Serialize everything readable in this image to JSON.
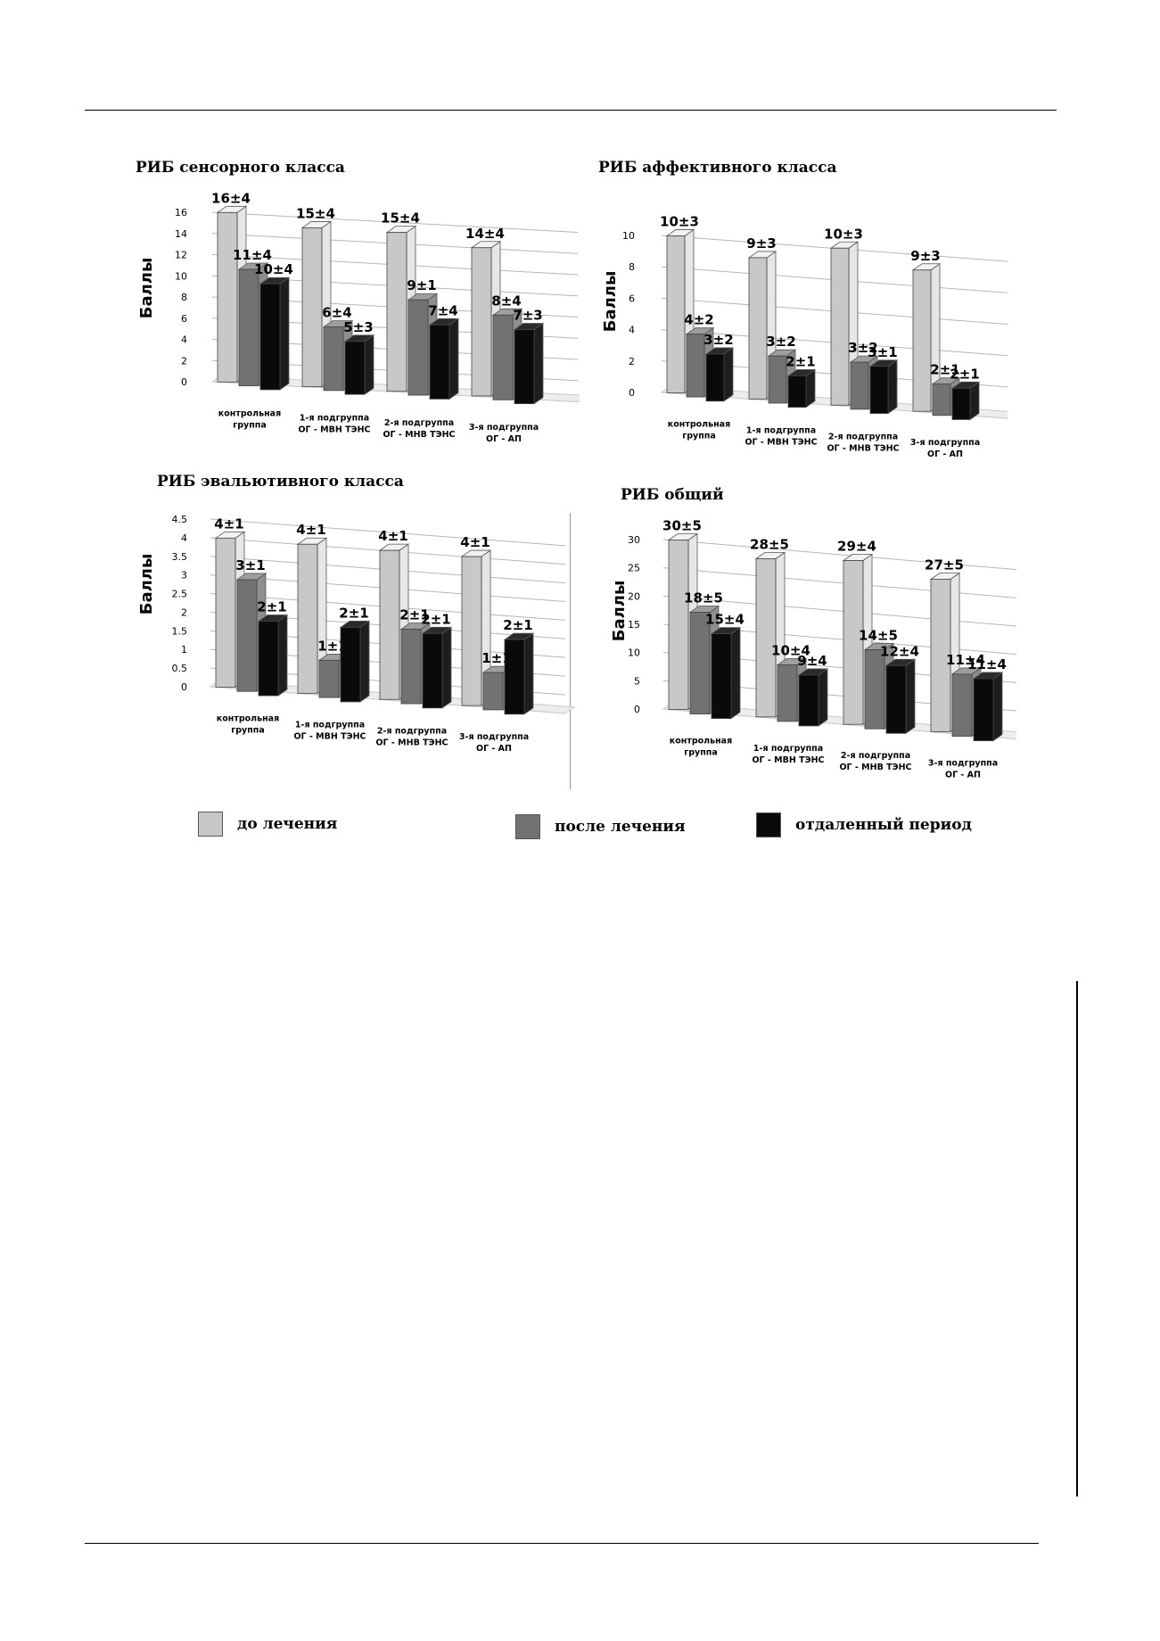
{
  "legend": [
    {
      "label": "до лечения",
      "color": "#c8c8c8"
    },
    {
      "label": "после лечения",
      "color": "#727272"
    },
    {
      "label": "отдаленный период",
      "color": "#0a0a0a"
    }
  ],
  "chart_data": [
    {
      "type": "bar",
      "title": "РИБ сенсорного класса",
      "ylabel": "Баллы",
      "ylim": [
        0,
        16
      ],
      "yticks": [
        "0",
        "2",
        "4",
        "6",
        "8",
        "10",
        "12",
        "14",
        "16"
      ],
      "categories": [
        [
          "контрольная",
          "группа"
        ],
        [
          "1-я подгруппа",
          "ОГ - МВН ТЭНС"
        ],
        [
          "2-я подгруппа",
          "ОГ - МНВ ТЭНС"
        ],
        [
          "3-я подгруппа",
          "ОГ -  АП"
        ]
      ],
      "series": [
        {
          "name": "до лечения",
          "values": [
            16,
            15,
            15,
            14
          ],
          "labels": [
            "16±4",
            "15±4",
            "15±4",
            "14±4"
          ]
        },
        {
          "name": "после лечения",
          "values": [
            11,
            6,
            9,
            8
          ],
          "labels": [
            "11±4",
            "6±4",
            "9±1",
            "8±4"
          ]
        },
        {
          "name": "отдаленный период",
          "values": [
            10,
            5,
            7,
            7
          ],
          "labels": [
            "10±4",
            "5±3",
            "7±4",
            "7±3"
          ]
        }
      ]
    },
    {
      "type": "bar",
      "title": "РИБ аффективного класса",
      "ylabel": "Баллы",
      "ylim": [
        0,
        10
      ],
      "yticks": [
        "0",
        "2",
        "4",
        "6",
        "8",
        "10"
      ],
      "categories": [
        [
          "контрольная",
          "группа"
        ],
        [
          "1-я подгруппа",
          "ОГ - МВН ТЭНС"
        ],
        [
          "2-я подгруппа",
          "ОГ - МНВ ТЭНС"
        ],
        [
          "3-я подгруппа",
          "ОГ -  АП"
        ]
      ],
      "series": [
        {
          "name": "до лечения",
          "values": [
            10,
            9,
            10,
            9
          ],
          "labels": [
            "10±3",
            "9±3",
            "10±3",
            "9±3"
          ]
        },
        {
          "name": "после лечения",
          "values": [
            4,
            3,
            3,
            2
          ],
          "labels": [
            "4±2",
            "3±2",
            "3±2",
            "2±1"
          ]
        },
        {
          "name": "отдаленный период",
          "values": [
            3,
            2,
            3,
            2
          ],
          "labels": [
            "3±2",
            "2±1",
            "3±1",
            "2±1"
          ]
        }
      ]
    },
    {
      "type": "bar",
      "title": "РИБ эвальютивного класса",
      "ylabel": "Баллы",
      "ylim": [
        0,
        4.5
      ],
      "yticks": [
        "0",
        "0.5",
        "1",
        "1.5",
        "2",
        "2.5",
        "3",
        "3.5",
        "4",
        "4.5"
      ],
      "categories": [
        [
          "контрольная",
          "группа"
        ],
        [
          "1-я подгруппа",
          "ОГ - МВН ТЭНС"
        ],
        [
          "2-я подгруппа",
          "ОГ - МНВ ТЭНС"
        ],
        [
          "3-я подгруппа",
          "ОГ - АП"
        ]
      ],
      "series": [
        {
          "name": "до лечения",
          "values": [
            4,
            4,
            4,
            4
          ],
          "labels": [
            "4±1",
            "4±1",
            "4±1",
            "4±1"
          ]
        },
        {
          "name": "после лечения",
          "values": [
            3,
            1,
            2,
            1
          ],
          "labels": [
            "3±1",
            "1±1",
            "2±1",
            "1±1"
          ]
        },
        {
          "name": "отдаленный период",
          "values": [
            2,
            2,
            2,
            2
          ],
          "labels": [
            "2±1",
            "2±1",
            "2±1",
            "2±1"
          ]
        }
      ]
    },
    {
      "type": "bar",
      "title": "РИБ общий",
      "ylabel": "Баллы",
      "ylim": [
        0,
        30
      ],
      "yticks": [
        "0",
        "5",
        "10",
        "15",
        "20",
        "25",
        "30"
      ],
      "categories": [
        [
          "контрольная",
          "группа"
        ],
        [
          "1-я подгруппа",
          "ОГ - МВН ТЭНС"
        ],
        [
          "2-я подгруппа",
          "ОГ - МНВ ТЭНС"
        ],
        [
          "3-я подгруппа",
          "ОГ -  АП"
        ]
      ],
      "series": [
        {
          "name": "до лечения",
          "values": [
            30,
            28,
            29,
            27
          ],
          "labels": [
            "30±5",
            "28±5",
            "29±4",
            "27±5"
          ]
        },
        {
          "name": "после лечения",
          "values": [
            18,
            10,
            14,
            11
          ],
          "labels": [
            "18±5",
            "10±4",
            "14±5",
            "11±4"
          ]
        },
        {
          "name": "отдаленный период",
          "values": [
            15,
            9,
            12,
            11
          ],
          "labels": [
            "15±4",
            "9±4",
            "12±4",
            "11±4"
          ]
        }
      ]
    }
  ]
}
